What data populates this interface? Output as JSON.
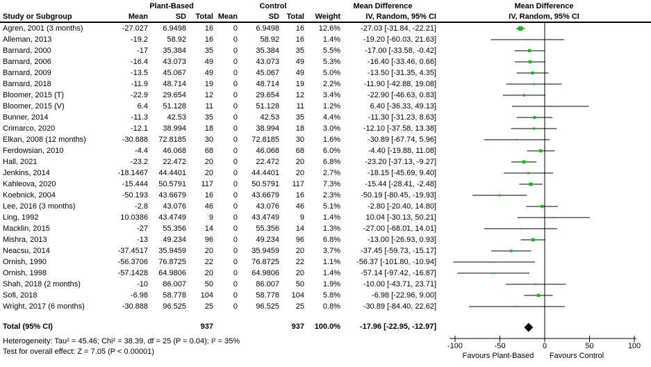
{
  "header": {
    "group1": "Plant-Based",
    "group2": "Control",
    "md_text": "Mean Difference",
    "md_plot": "Mean Difference",
    "study_col": "Study or Subgroup",
    "mean": "Mean",
    "sd": "SD",
    "total": "Total",
    "weight": "Weight",
    "ci_method_text": "IV, Random, 95% CI",
    "ci_method_plot": "IV, Random, 95% CI"
  },
  "chart_data": {
    "type": "forest",
    "title": "Mean Difference IV, Random, 95% CI",
    "axis": {
      "min": -100,
      "max": 100,
      "ticks": [
        -100,
        -50,
        0,
        50,
        100
      ],
      "tick_labels": [
        "-100",
        "-50",
        "0",
        "50",
        "100"
      ],
      "favours_left": "Favours Plant-Based",
      "favours_right": "Favours Control"
    },
    "points": [
      {
        "label": "Agren, 2001 (3 months)",
        "mean1": "-27.027",
        "sd1": "6.9498",
        "n1": "16",
        "mean2": "0",
        "sd2": "6.9498",
        "n2": "16",
        "weight_pct": "12.6%",
        "w": 12.6,
        "ci_label": "-27.03 [-31.84, -22.21]",
        "est": -27.03,
        "lo": -31.84,
        "hi": -22.21
      },
      {
        "label": "Alleman, 2013",
        "mean1": "-19.2",
        "sd1": "58.92",
        "n1": "16",
        "mean2": "0",
        "sd2": "58.92",
        "n2": "16",
        "weight_pct": "1.4%",
        "w": 1.4,
        "ci_label": "-19.20 [-60.03, 21.63]",
        "est": -19.2,
        "lo": -60.03,
        "hi": 21.63
      },
      {
        "label": "Barnard, 2000",
        "mean1": "-17",
        "sd1": "35.384",
        "n1": "35",
        "mean2": "0",
        "sd2": "35.384",
        "n2": "35",
        "weight_pct": "5.5%",
        "w": 5.5,
        "ci_label": "-17.00 [-33.58, -0.42]",
        "est": -17.0,
        "lo": -33.58,
        "hi": -0.42
      },
      {
        "label": "Barnard, 2006",
        "mean1": "-16.4",
        "sd1": "43.073",
        "n1": "49",
        "mean2": "0",
        "sd2": "43.073",
        "n2": "49",
        "weight_pct": "5.3%",
        "w": 5.3,
        "ci_label": "-16.40 [-33.46, 0.66]",
        "est": -16.4,
        "lo": -33.46,
        "hi": 0.66
      },
      {
        "label": "Barnard, 2009",
        "mean1": "-13.5",
        "sd1": "45.067",
        "n1": "49",
        "mean2": "0",
        "sd2": "45.067",
        "n2": "49",
        "weight_pct": "5.0%",
        "w": 5.0,
        "ci_label": "-13.50 [-31.35, 4.35]",
        "est": -13.5,
        "lo": -31.35,
        "hi": 4.35
      },
      {
        "label": "Barnard, 2018",
        "mean1": "-11.9",
        "sd1": "48.714",
        "n1": "19",
        "mean2": "0",
        "sd2": "48.714",
        "n2": "19",
        "weight_pct": "2.2%",
        "w": 2.2,
        "ci_label": "-11.90 [-42.88, 19.08]",
        "est": -11.9,
        "lo": -42.88,
        "hi": 19.08
      },
      {
        "label": "Bloomer, 2015 (T)",
        "mean1": "-22.9",
        "sd1": "29.654",
        "n1": "12",
        "mean2": "0",
        "sd2": "29.654",
        "n2": "12",
        "weight_pct": "3.4%",
        "w": 3.4,
        "ci_label": "-22.90 [-46.63, 0.83]",
        "est": -22.9,
        "lo": -46.63,
        "hi": 0.83
      },
      {
        "label": "Bloomer, 2015 (V)",
        "mean1": "6.4",
        "sd1": "51.128",
        "n1": "11",
        "mean2": "0",
        "sd2": "51.128",
        "n2": "11",
        "weight_pct": "1.2%",
        "w": 1.2,
        "ci_label": "6.40 [-36.33, 49.13]",
        "est": 6.4,
        "lo": -36.33,
        "hi": 49.13
      },
      {
        "label": "Bunner, 2014",
        "mean1": "-11.3",
        "sd1": "42.53",
        "n1": "35",
        "mean2": "0",
        "sd2": "42.53",
        "n2": "35",
        "weight_pct": "4.4%",
        "w": 4.4,
        "ci_label": "-11.30 [-31.23, 8.63]",
        "est": -11.3,
        "lo": -31.23,
        "hi": 8.63
      },
      {
        "label": "Crimarco, 2020",
        "mean1": "-12.1",
        "sd1": "38.994",
        "n1": "18",
        "mean2": "0",
        "sd2": "38.994",
        "n2": "18",
        "weight_pct": "3.0%",
        "w": 3.0,
        "ci_label": "-12.10 [-37.58, 13.38]",
        "est": -12.1,
        "lo": -37.58,
        "hi": 13.38
      },
      {
        "label": "Elkan, 2008 (12 months)",
        "mean1": "-30.888",
        "sd1": "72.8185",
        "n1": "30",
        "mean2": "0",
        "sd2": "72.8185",
        "n2": "30",
        "weight_pct": "1.6%",
        "w": 1.6,
        "ci_label": "-30.89 [-67.74, 5.96]",
        "est": -30.89,
        "lo": -67.74,
        "hi": 5.96
      },
      {
        "label": "Ferdowsian, 2010",
        "mean1": "-4.4",
        "sd1": "46.068",
        "n1": "68",
        "mean2": "0",
        "sd2": "46.068",
        "n2": "68",
        "weight_pct": "6.0%",
        "w": 6.0,
        "ci_label": "-4.40 [-19.88, 11.08]",
        "est": -4.4,
        "lo": -19.88,
        "hi": 11.08
      },
      {
        "label": "Hall, 2021",
        "mean1": "-23.2",
        "sd1": "22.472",
        "n1": "20",
        "mean2": "0",
        "sd2": "22.472",
        "n2": "20",
        "weight_pct": "6.8%",
        "w": 6.8,
        "ci_label": "-23.20 [-37.13, -9.27]",
        "est": -23.2,
        "lo": -37.13,
        "hi": -9.27
      },
      {
        "label": "Jenkins, 2014",
        "mean1": "-18.1467",
        "sd1": "44.4401",
        "n1": "20",
        "mean2": "0",
        "sd2": "44.4401",
        "n2": "20",
        "weight_pct": "2.7%",
        "w": 2.7,
        "ci_label": "-18.15 [-45.69, 9.40]",
        "est": -18.15,
        "lo": -45.69,
        "hi": 9.4
      },
      {
        "label": "Kahleova, 2020",
        "mean1": "-15.444",
        "sd1": "50.5791",
        "n1": "117",
        "mean2": "0",
        "sd2": "50.5791",
        "n2": "117",
        "weight_pct": "7.3%",
        "w": 7.3,
        "ci_label": "-15.44 [-28.41, -2.48]",
        "est": -15.44,
        "lo": -28.41,
        "hi": -2.48
      },
      {
        "label": "Koebnick, 2004",
        "mean1": "-50.193",
        "sd1": "43.6679",
        "n1": "16",
        "mean2": "0",
        "sd2": "43.6679",
        "n2": "16",
        "weight_pct": "2.3%",
        "w": 2.3,
        "ci_label": "-50.19 [-80.45, -19.93]",
        "est": -50.19,
        "lo": -80.45,
        "hi": -19.93
      },
      {
        "label": "Lee, 2016 (3 months)",
        "mean1": "-2.8",
        "sd1": "43.076",
        "n1": "46",
        "mean2": "0",
        "sd2": "43.076",
        "n2": "46",
        "weight_pct": "5.1%",
        "w": 5.1,
        "ci_label": "-2.80 [-20.40, 14.80]",
        "est": -2.8,
        "lo": -20.4,
        "hi": 14.8
      },
      {
        "label": "Ling, 1992",
        "mean1": "10.0386",
        "sd1": "43.4749",
        "n1": "9",
        "mean2": "0",
        "sd2": "43.4749",
        "n2": "9",
        "weight_pct": "1.4%",
        "w": 1.4,
        "ci_label": "10.04 [-30.13, 50.21]",
        "est": 10.04,
        "lo": -30.13,
        "hi": 50.21
      },
      {
        "label": "Macklin, 2015",
        "mean1": "-27",
        "sd1": "55.356",
        "n1": "14",
        "mean2": "0",
        "sd2": "55.356",
        "n2": "14",
        "weight_pct": "1.3%",
        "w": 1.3,
        "ci_label": "-27.00 [-68.01, 14.01]",
        "est": -27.0,
        "lo": -68.01,
        "hi": 14.01
      },
      {
        "label": "Mishra, 2013",
        "mean1": "-13",
        "sd1": "49.234",
        "n1": "96",
        "mean2": "0",
        "sd2": "49.234",
        "n2": "96",
        "weight_pct": "6.8%",
        "w": 6.8,
        "ci_label": "-13.00 [-26.93, 0.93]",
        "est": -13.0,
        "lo": -26.93,
        "hi": 0.93
      },
      {
        "label": "Neacsu, 2014",
        "mean1": "-37.4517",
        "sd1": "35.9459",
        "n1": "20",
        "mean2": "0",
        "sd2": "35.9459",
        "n2": "20",
        "weight_pct": "3.7%",
        "w": 3.7,
        "ci_label": "-37.45 [-59.73, -15.17]",
        "est": -37.45,
        "lo": -59.73,
        "hi": -15.17
      },
      {
        "label": "Ornish, 1990",
        "mean1": "-56.3706",
        "sd1": "76.8725",
        "n1": "22",
        "mean2": "0",
        "sd2": "76.8725",
        "n2": "22",
        "weight_pct": "1.1%",
        "w": 1.1,
        "ci_label": "-56.37 [-101.80, -10.94]",
        "est": -56.37,
        "lo": -101.8,
        "hi": -10.94
      },
      {
        "label": "Ornish, 1998",
        "mean1": "-57.1428",
        "sd1": "64.9806",
        "n1": "20",
        "mean2": "0",
        "sd2": "64.9806",
        "n2": "20",
        "weight_pct": "1.4%",
        "w": 1.4,
        "ci_label": "-57.14 [-97.42, -16.87]",
        "est": -57.14,
        "lo": -97.42,
        "hi": -16.87
      },
      {
        "label": "Shah, 2018 (2 months)",
        "mean1": "-10",
        "sd1": "86.007",
        "n1": "50",
        "mean2": "0",
        "sd2": "86.007",
        "n2": "50",
        "weight_pct": "1.9%",
        "w": 1.9,
        "ci_label": "-10.00 [-43.71, 23.71]",
        "est": -10.0,
        "lo": -43.71,
        "hi": 23.71
      },
      {
        "label": "Sofi, 2018",
        "mean1": "-6.98",
        "sd1": "58.778",
        "n1": "104",
        "mean2": "0",
        "sd2": "58.778",
        "n2": "104",
        "weight_pct": "5.8%",
        "w": 5.8,
        "ci_label": "-6.98 [-22.96, 9.00]",
        "est": -6.98,
        "lo": -22.96,
        "hi": 9.0
      },
      {
        "label": "Wright, 2017 (6 months)",
        "mean1": "-30.888",
        "sd1": "96.525",
        "n1": "25",
        "mean2": "0",
        "sd2": "96.525",
        "n2": "25",
        "weight_pct": "0.8%",
        "w": 0.8,
        "ci_label": "-30.89 [-84.40, 22.62]",
        "est": -30.89,
        "lo": -84.4,
        "hi": 22.62
      }
    ],
    "pooled": {
      "label": "Total (95% CI)",
      "n1": "937",
      "n2": "937",
      "weight_pct": "100.0%",
      "ci_label": "-17.96 [-22.95, -12.97]",
      "est": -17.96,
      "lo": -22.95,
      "hi": -12.97
    }
  },
  "footnotes": {
    "heterogeneity": "Heterogeneity: Tau² = 45.46; Chi² = 38.39, df = 25 (P = 0.04); I² = 35%",
    "overall": "Test for overall effect: Z = 7.05 (P < 0.00001)"
  },
  "colors": {
    "marker_green": "#00C000",
    "diamond_black": "#000000",
    "line_black": "#000000"
  }
}
